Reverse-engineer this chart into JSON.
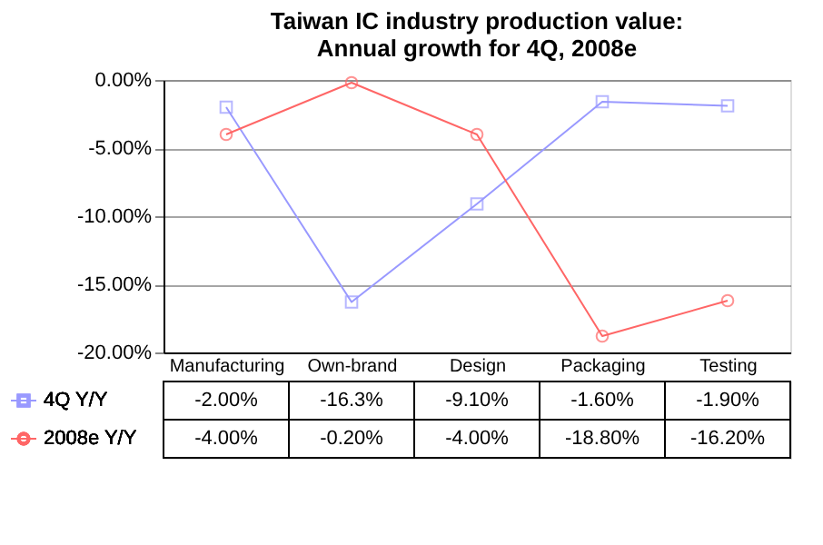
{
  "chart_data": {
    "type": "line",
    "title": "Taiwan IC industry production value: Annual growth for 4Q, 2008e",
    "categories": [
      "Manufacturing",
      "Own-brand",
      "Design",
      "Packaging",
      "Testing"
    ],
    "series": [
      {
        "name": "4Q Y/Y",
        "color": "#9999ff",
        "marker": "square",
        "values": [
          -2.0,
          -16.3,
          -9.1,
          -1.6,
          -1.9
        ],
        "value_labels": [
          "-2.00%",
          "-16.3%",
          "-9.10%",
          "-1.60%",
          "-1.90%"
        ]
      },
      {
        "name": "2008e Y/Y",
        "color": "#ff6666",
        "marker": "circle",
        "values": [
          -4.0,
          -0.2,
          -4.0,
          -18.8,
          -16.2
        ],
        "value_labels": [
          "-4.00%",
          "-0.20%",
          "-4.00%",
          "-18.80%",
          "-16.20%"
        ]
      }
    ],
    "ylim": [
      -20,
      0
    ],
    "yticks": [
      {
        "value": 0,
        "label": "0.00%"
      },
      {
        "value": -5,
        "label": "-5.00%"
      },
      {
        "value": -10,
        "label": "-10.00%"
      },
      {
        "value": -15,
        "label": "-15.00%"
      },
      {
        "value": -20,
        "label": "-20.00%"
      }
    ],
    "grid": "y",
    "legend": "bottom",
    "line_style": "solid"
  }
}
